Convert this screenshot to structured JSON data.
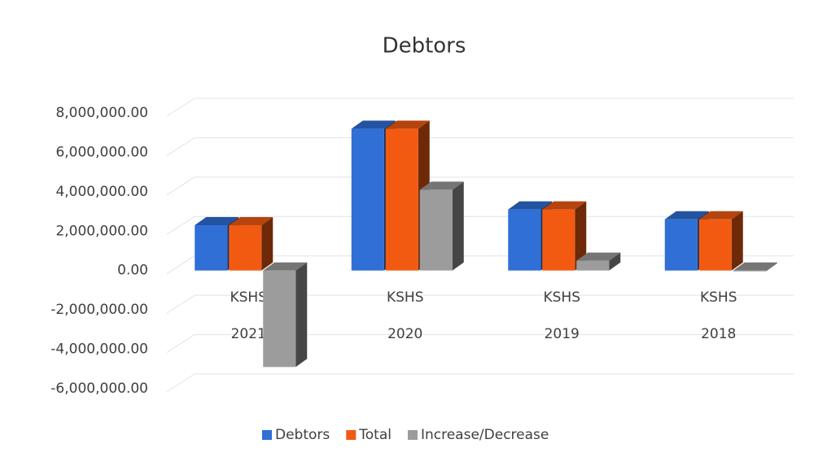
{
  "chart_data": {
    "type": "bar3d",
    "title": "Debtors",
    "categories": [
      [
        "KSHS",
        "2021"
      ],
      [
        "KSHS",
        "2020"
      ],
      [
        "KSHS",
        "2019"
      ],
      [
        "KSHS",
        "2018"
      ]
    ],
    "series": [
      {
        "name": "Debtors",
        "color": "#2f6fd6",
        "values": [
          2300000,
          7200000,
          3100000,
          2600000
        ]
      },
      {
        "name": "Total",
        "color": "#f25a12",
        "values": [
          2300000,
          7200000,
          3100000,
          2600000
        ]
      },
      {
        "name": "Increase/Decrease",
        "color": "#9c9c9c",
        "values": [
          -4900000,
          4100000,
          500000,
          0
        ]
      }
    ],
    "ylim": [
      -6000000,
      8000000
    ],
    "yticks": [
      {
        "value": -6000000,
        "label": "-6,000,000.00"
      },
      {
        "value": -4000000,
        "label": "-4,000,000.00"
      },
      {
        "value": -2000000,
        "label": "-2,000,000.00"
      },
      {
        "value": 0,
        "label": "0.00"
      },
      {
        "value": 2000000,
        "label": "2,000,000.00"
      },
      {
        "value": 4000000,
        "label": "4,000,000.00"
      },
      {
        "value": 6000000,
        "label": "6,000,000.00"
      },
      {
        "value": 8000000,
        "label": "8,000,000.00"
      }
    ],
    "grid": true,
    "legend": "bottom"
  }
}
